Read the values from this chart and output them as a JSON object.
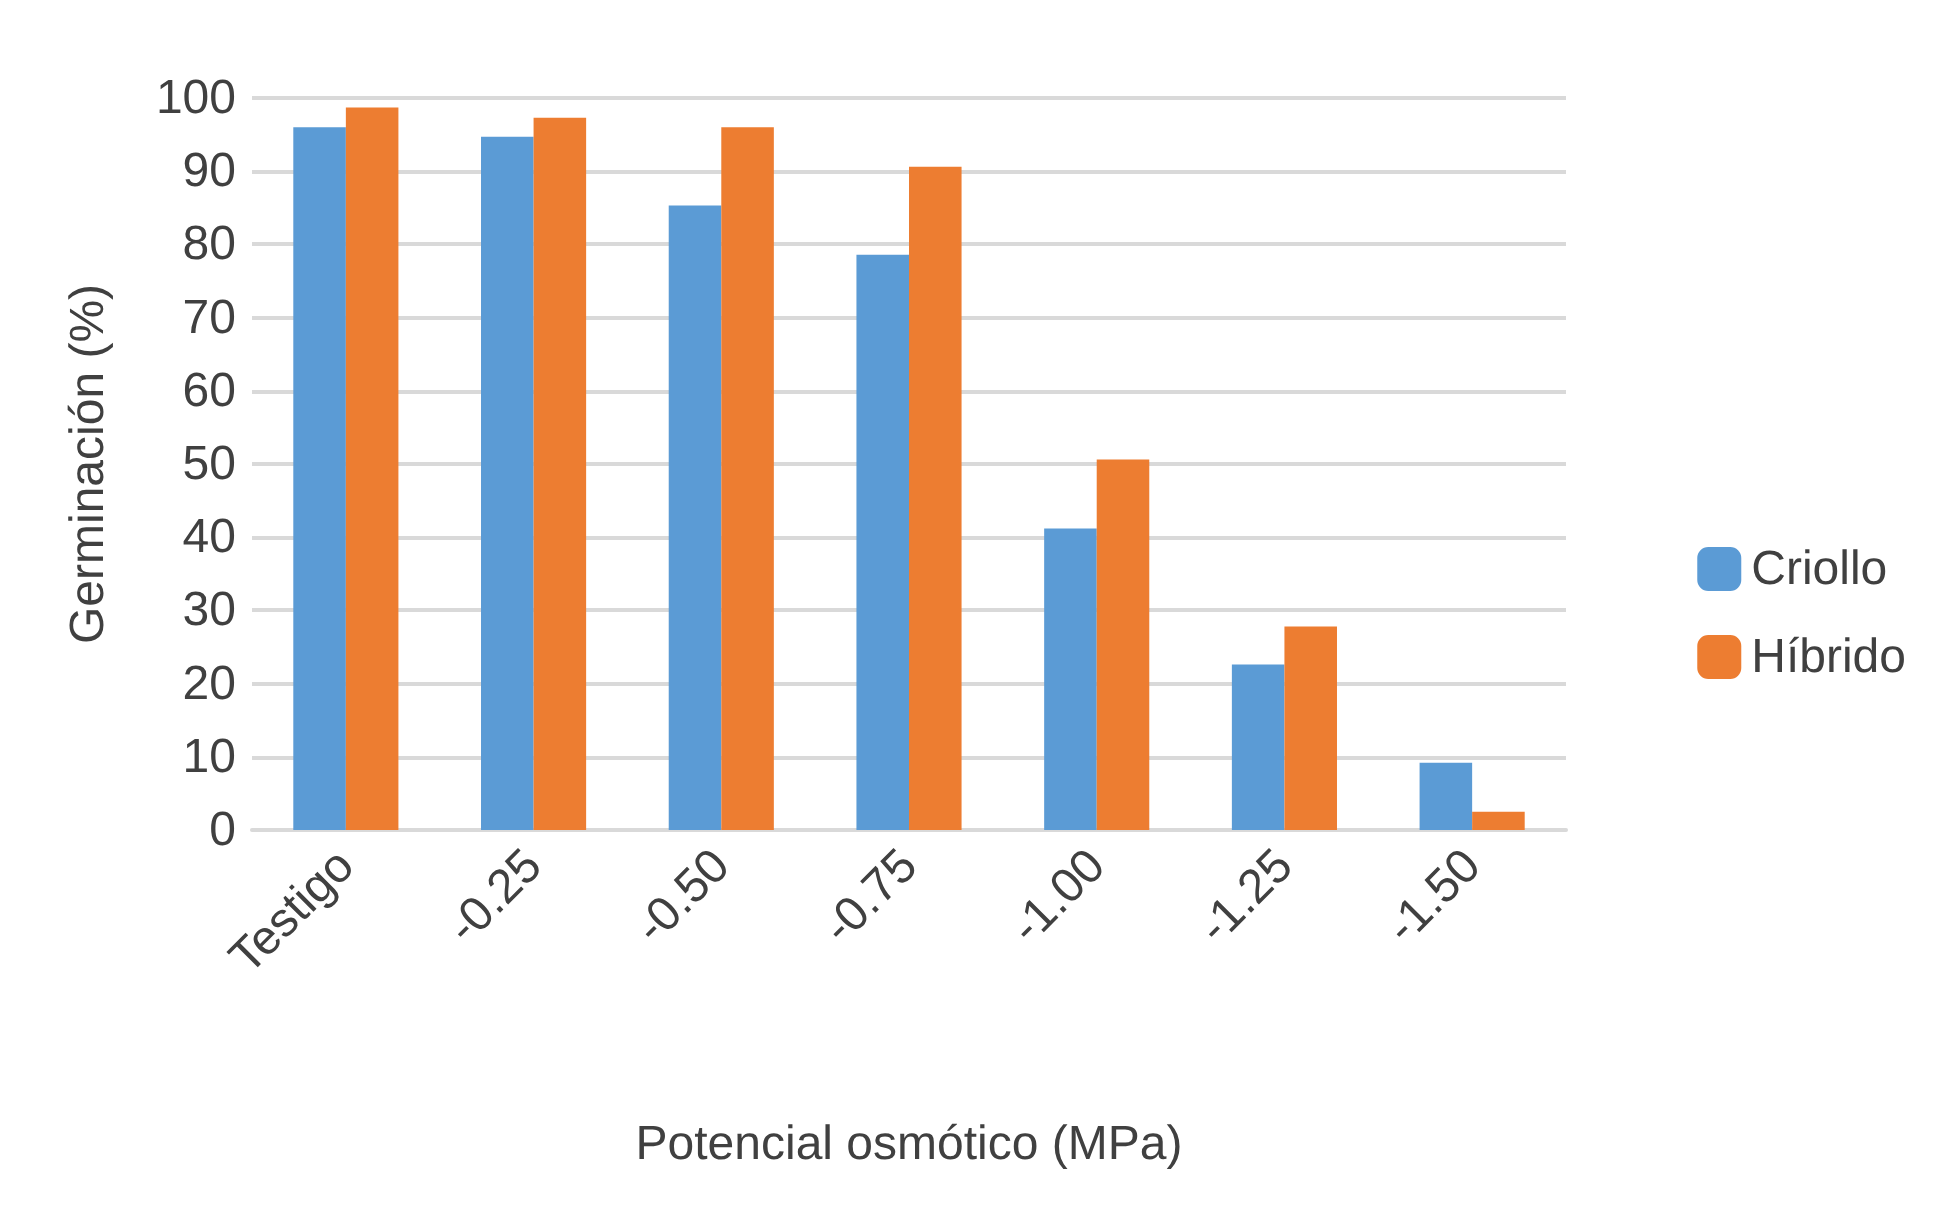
{
  "chart_data": {
    "type": "bar",
    "xlabel": "Potencial osmótico (MPa)",
    "ylabel": "Germinación (%)",
    "categories": [
      "Testigo",
      "-0.25",
      "-0.50",
      "-0.75",
      "-1.00",
      "-1.25",
      "-1.50"
    ],
    "series": [
      {
        "name": "Criollo",
        "color": "#5b9bd5",
        "values": [
          96.0,
          94.7,
          85.3,
          78.6,
          41.2,
          22.6,
          9.2
        ]
      },
      {
        "name": "Híbrido",
        "color": "#ed7d31",
        "values": [
          98.7,
          97.3,
          96.0,
          90.6,
          50.6,
          27.8,
          2.5
        ]
      }
    ],
    "ylim": [
      0,
      100
    ],
    "yticks": [
      0,
      10,
      20,
      30,
      40,
      50,
      60,
      70,
      80,
      90,
      100
    ],
    "grid": "y",
    "legend": "right"
  }
}
